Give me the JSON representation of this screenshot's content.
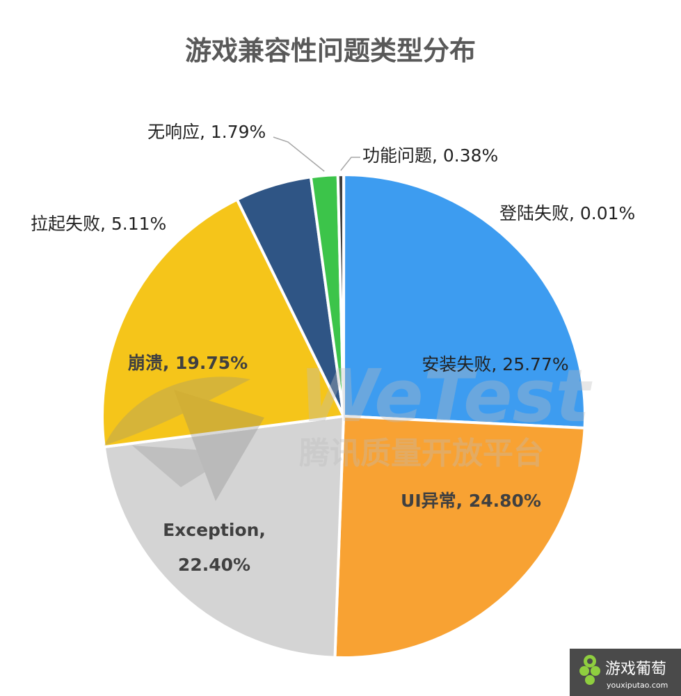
{
  "chart_data": {
    "type": "pie",
    "title": "游戏兼容性问题类型分布",
    "slices": [
      {
        "name": "安装失败",
        "value": 25.77,
        "label": "25.77%",
        "color": "#3d9cf0"
      },
      {
        "name": "UI异常",
        "value": 24.8,
        "label": "24.80%",
        "color": "#f8a233"
      },
      {
        "name": "Exception",
        "value": 22.4,
        "label": "22.40%",
        "color": "#d4d4d4"
      },
      {
        "name": "崩溃",
        "value": 19.75,
        "label": "19.75%",
        "color": "#f5c51a"
      },
      {
        "name": "拉起失败",
        "value": 5.11,
        "label": "5.11%",
        "color": "#2f5585"
      },
      {
        "name": "无响应",
        "value": 1.79,
        "label": "1.79%",
        "color": "#3cc44a"
      },
      {
        "name": "功能问题",
        "value": 0.38,
        "label": "0.38%",
        "color": "#3f3f3f"
      },
      {
        "name": "登陆失败",
        "value": 0.01,
        "label": "0.01%",
        "color": "#3d9cf0"
      }
    ]
  },
  "watermark": {
    "line1": "WeTest",
    "line2": "腾讯质量开放平台"
  },
  "logo": {
    "name": "游戏葡萄",
    "url": "youxiputao.com"
  }
}
